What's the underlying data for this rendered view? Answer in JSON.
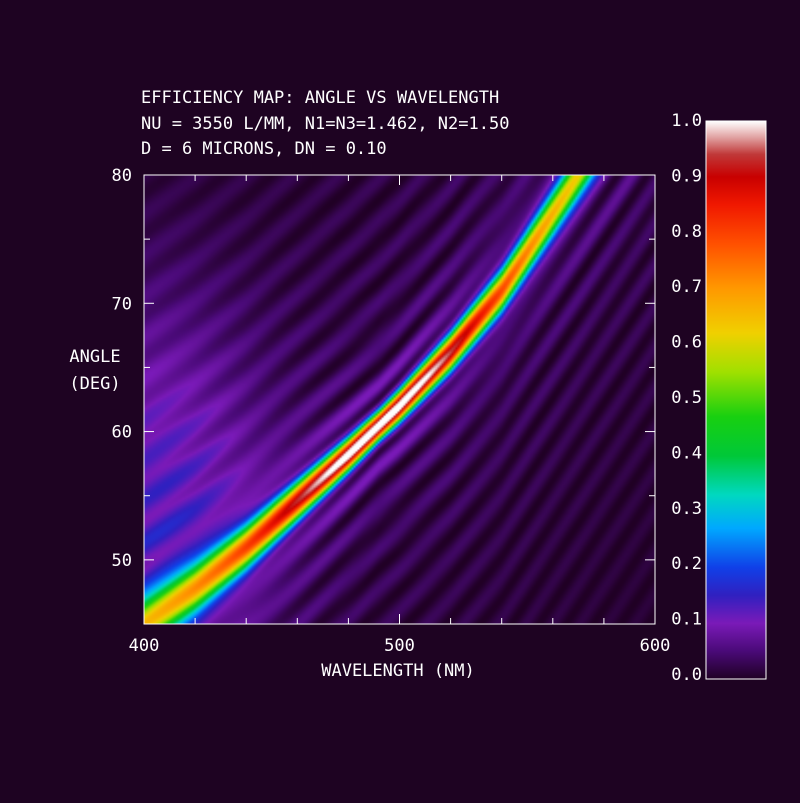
{
  "chart_data": {
    "type": "heatmap",
    "title_lines": [
      "EFFICIENCY MAP: ANGLE VS WAVELENGTH",
      "NU = 3550 L/MM, N1=N3=1.462, N2=1.50",
      "D = 6 MICRONS, DN = 0.10"
    ],
    "xlabel": "WAVELENGTH (NM)",
    "ylabel_lines": [
      "ANGLE",
      "(DEG)"
    ],
    "xlim": [
      400,
      600
    ],
    "ylim": [
      45,
      80
    ],
    "x_ticks": [
      400,
      500,
      600
    ],
    "y_ticks": [
      50,
      60,
      70,
      80
    ],
    "x_tick_labels": [
      "400",
      "500",
      "600"
    ],
    "y_tick_labels": [
      "50",
      "60",
      "70",
      "80"
    ],
    "colorbar": {
      "range": [
        0,
        1
      ],
      "tick_values": [
        0,
        0.1,
        0.2,
        0.3,
        0.4,
        0.5,
        0.6,
        0.7,
        0.8,
        0.9,
        1.0
      ],
      "tick_labels": [
        "0.0",
        "0.1",
        "0.2",
        "0.3",
        "0.4",
        "0.5",
        "0.6",
        "0.7",
        "0.8",
        "0.9",
        "1.0"
      ],
      "colormap": [
        [
          0.0,
          "#200024"
        ],
        [
          0.05,
          "#4a0a78"
        ],
        [
          0.1,
          "#7a1ab8"
        ],
        [
          0.15,
          "#3020c0"
        ],
        [
          0.2,
          "#1040e8"
        ],
        [
          0.27,
          "#00a8ff"
        ],
        [
          0.33,
          "#00d8c0"
        ],
        [
          0.4,
          "#00c838"
        ],
        [
          0.47,
          "#18d010"
        ],
        [
          0.55,
          "#a0e000"
        ],
        [
          0.62,
          "#f0d000"
        ],
        [
          0.7,
          "#ff9800"
        ],
        [
          0.78,
          "#ff5000"
        ],
        [
          0.85,
          "#f01800"
        ],
        [
          0.9,
          "#c80000"
        ],
        [
          0.94,
          "#c03838"
        ],
        [
          0.97,
          "#e0a0a0"
        ],
        [
          1.0,
          "#ffffff"
        ]
      ]
    },
    "peak": {
      "wavelength": 492,
      "angle": 60.5,
      "value": 1.0
    },
    "ridge": [
      [
        400,
        45.0
      ],
      [
        420,
        47.8
      ],
      [
        440,
        51.0
      ],
      [
        460,
        54.6
      ],
      [
        480,
        58.2
      ],
      [
        500,
        62.0
      ],
      [
        520,
        66.2
      ],
      [
        540,
        71.0
      ],
      [
        560,
        77.0
      ],
      [
        570,
        80.0
      ]
    ],
    "grid": false
  }
}
